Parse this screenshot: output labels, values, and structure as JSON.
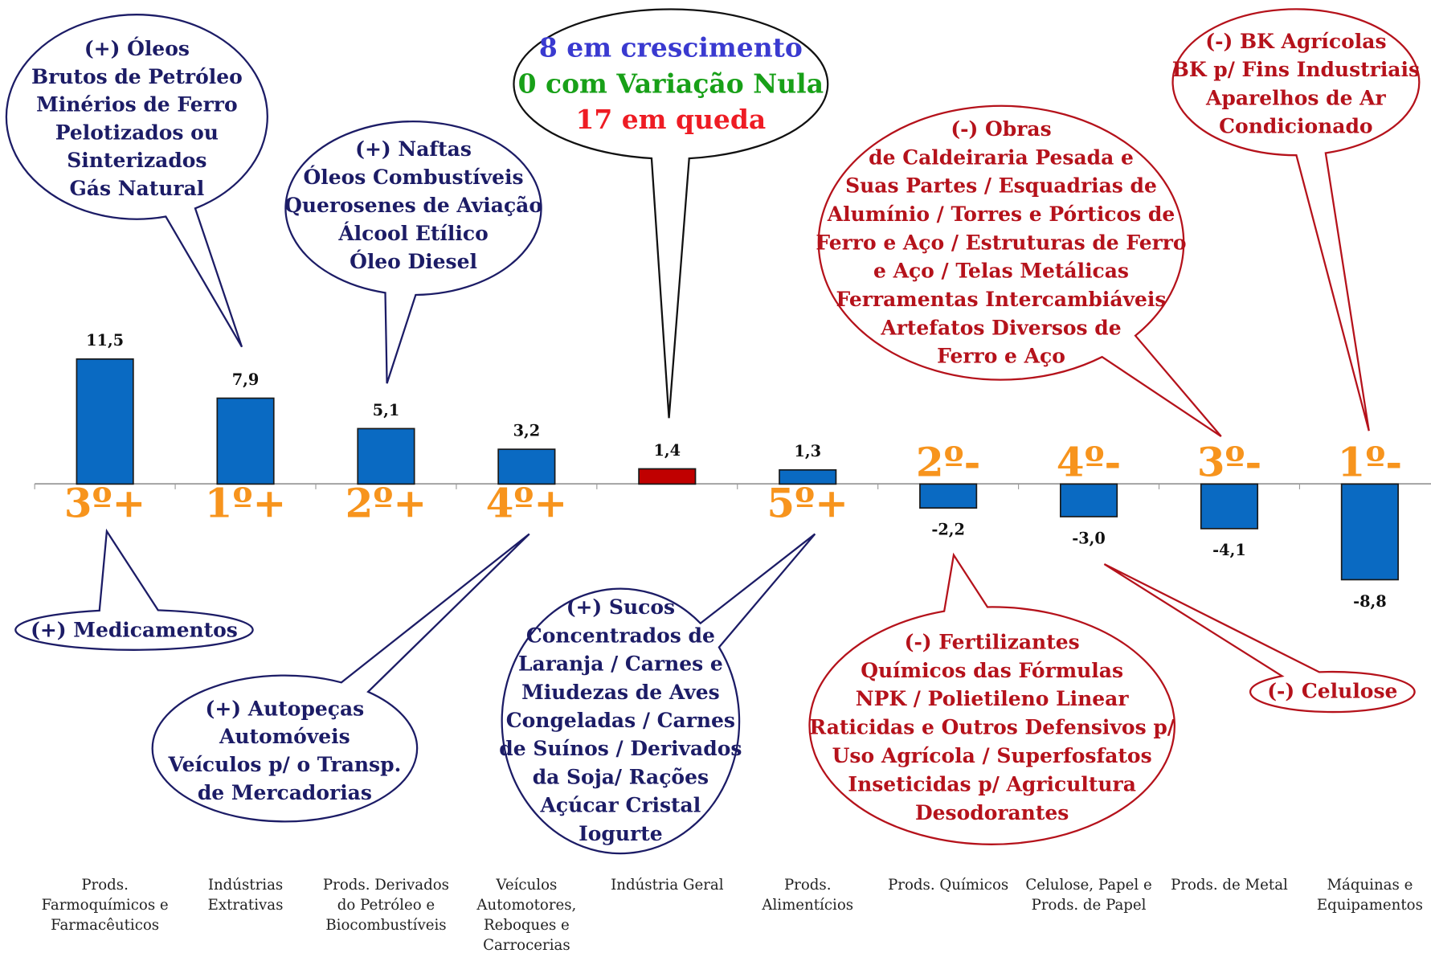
{
  "chart_data": {
    "type": "bar",
    "categories": [
      "Prods.\nFarmoquímicos e\nFarmacêuticos",
      "Indústrias\nExtrativas",
      "Prods. Derivados\ndo Petróleo e\nBiocombustíveis",
      "Veículos\nAutomotores,\nReboques e\nCarrocerias",
      "Indústria Geral",
      "Prods.\nAlimentícios",
      "Prods. Químicos",
      "Celulose, Papel e\nProds. de Papel",
      "Prods. de Metal",
      "Máquinas e\nEquipamentos"
    ],
    "values": [
      11.5,
      7.9,
      5.1,
      3.2,
      1.4,
      1.3,
      -2.2,
      -3.0,
      -4.1,
      -8.8
    ],
    "value_labels": [
      "11,5",
      "7,9",
      "5,1",
      "3,2",
      "1,4",
      "1,3",
      "-2,2",
      "-3,0",
      "-4,1",
      "-8,8"
    ],
    "colors": [
      "#0a6ac2",
      "#0a6ac2",
      "#0a6ac2",
      "#0a6ac2",
      "#c00000",
      "#0a6ac2",
      "#0a6ac2",
      "#0a6ac2",
      "#0a6ac2",
      "#0a6ac2"
    ],
    "rank_labels": [
      "3º+",
      "1º+",
      "2º+",
      "4º+",
      null,
      "5º+",
      "2º-",
      "4º-",
      "3º-",
      "1º-"
    ],
    "ylim": [
      -14,
      30
    ],
    "callouts": [
      {
        "color": "#1c1c66",
        "lines": [
          "(+) Óleos",
          "Brutos de Petróleo",
          "Minérios de Ferro",
          "Pelotizados ou",
          "Sinterizados",
          "Gás Natural"
        ]
      },
      {
        "color": "#1c1c66",
        "lines": [
          "(+) Naftas",
          "Óleos Combustíveis",
          "Querosenes de Aviação",
          "Álcool Etílico",
          "Óleo Diesel"
        ]
      },
      {
        "lines": [
          "8 em crescimento",
          "0 com Variação Nula",
          "17 em queda"
        ],
        "line_colors": [
          "#3a3ad0",
          "#18a018",
          "#ee1c24"
        ]
      },
      {
        "color": "#b5121b",
        "lines": [
          "(-) Obras",
          "de Caldeiraria Pesada e",
          "Suas Partes / Esquadrias de",
          "Alumínio / Torres e Pórticos de",
          "Ferro e Aço / Estruturas de Ferro",
          "e Aço / Telas Metálicas",
          "Ferramentas Intercambiáveis",
          "Artefatos Diversos de",
          "Ferro e Aço"
        ]
      },
      {
        "color": "#b5121b",
        "lines": [
          "(-) BK Agrícolas",
          "BK p/ Fins Industriais",
          "Aparelhos de Ar",
          "Condicionado"
        ]
      },
      {
        "color": "#1c1c66",
        "lines": [
          "(+) Medicamentos"
        ]
      },
      {
        "color": "#1c1c66",
        "lines": [
          "(+) Autopeças",
          "Automóveis",
          "Veículos p/ o Transp.",
          "de Mercadorias"
        ]
      },
      {
        "color": "#1c1c66",
        "lines": [
          "(+) Sucos",
          "Concentrados de",
          "Laranja / Carnes e",
          "Miudezas de Aves",
          "Congeladas / Carnes",
          "de Suínos / Derivados",
          "da Soja/ Rações",
          "Açúcar Cristal",
          "Iogurte"
        ]
      },
      {
        "color": "#b5121b",
        "lines": [
          "(-) Fertilizantes",
          "Químicos das Fórmulas",
          "NPK / Polietileno Linear",
          "Raticidas e Outros Defensivos p/",
          "Uso Agrícola / Superfosfatos",
          "Inseticidas p/ Agricultura",
          "Desodorantes"
        ]
      },
      {
        "color": "#b5121b",
        "lines": [
          "(-) Celulose"
        ]
      }
    ]
  }
}
